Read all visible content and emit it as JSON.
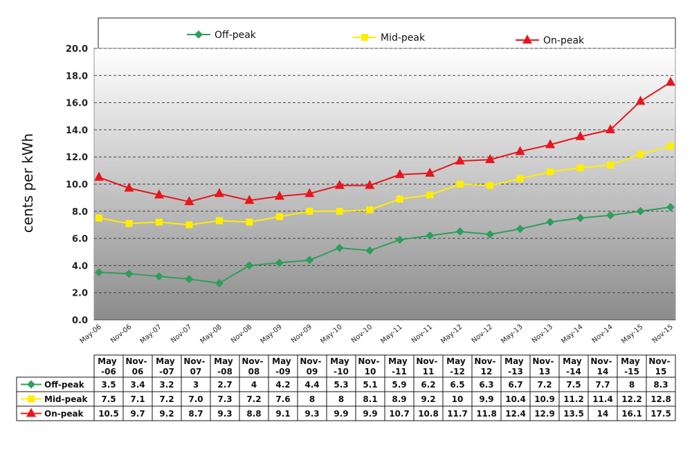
{
  "chart_data": {
    "type": "line",
    "title": "",
    "xlabel": "",
    "ylabel": "cents per kWh",
    "ylim": [
      0,
      20
    ],
    "yticks": [
      "0.0",
      "2.0",
      "4.0",
      "6.0",
      "8.0",
      "10.0",
      "12.0",
      "14.0",
      "16.0",
      "18.0",
      "20.0"
    ],
    "grid": true,
    "legend_position": "top",
    "categories": [
      "May-06",
      "Nov-06",
      "May-07",
      "Nov-07",
      "May-08",
      "Nov-08",
      "May-09",
      "Nov-09",
      "May-10",
      "Nov-10",
      "May-11",
      "Nov-11",
      "May-12",
      "Nov-12",
      "May-13",
      "Nov-13",
      "May-14",
      "Nov-14",
      "May-15",
      "Nov-15"
    ],
    "table_headers": [
      "May -06",
      "Nov- 06",
      "May -07",
      "Nov- 07",
      "May -08",
      "Nov- 08",
      "May -09",
      "Nov- 09",
      "May -10",
      "Nov- 10",
      "May -11",
      "Nov- 11",
      "May -12",
      "Nov- 12",
      "May -13",
      "Nov- 13",
      "May -14",
      "Nov- 14",
      "May -15",
      "Nov- 15"
    ],
    "series": [
      {
        "name": "Off-peak",
        "color": "#2e9e5b",
        "marker": "diamond",
        "values": [
          3.5,
          3.4,
          3.2,
          3,
          2.7,
          4,
          4.2,
          4.4,
          5.3,
          5.1,
          5.9,
          6.2,
          6.5,
          6.3,
          6.7,
          7.2,
          7.5,
          7.7,
          8,
          8.3
        ],
        "labels": [
          "3.5",
          "3.4",
          "3.2",
          "3",
          "2.7",
          "4",
          "4.2",
          "4.4",
          "5.3",
          "5.1",
          "5.9",
          "6.2",
          "6.5",
          "6.3",
          "6.7",
          "7.2",
          "7.5",
          "7.7",
          "8",
          "8.3"
        ]
      },
      {
        "name": "Mid-peak",
        "color": "#ffee00",
        "marker": "square",
        "values": [
          7.5,
          7.1,
          7.2,
          7.0,
          7.3,
          7.2,
          7.6,
          8,
          8,
          8.1,
          8.9,
          9.2,
          10,
          9.9,
          10.4,
          10.9,
          11.2,
          11.4,
          12.2,
          12.8
        ],
        "labels": [
          "7.5",
          "7.1",
          "7.2",
          "7.0",
          "7.3",
          "7.2",
          "7.6",
          "8",
          "8",
          "8.1",
          "8.9",
          "9.2",
          "10",
          "9.9",
          "10.4",
          "10.9",
          "11.2",
          "11.4",
          "12.2",
          "12.8"
        ]
      },
      {
        "name": "On-peak",
        "color": "#e8151b",
        "marker": "triangle",
        "values": [
          10.5,
          9.7,
          9.2,
          8.7,
          9.3,
          8.8,
          9.1,
          9.3,
          9.9,
          9.9,
          10.7,
          10.8,
          11.7,
          11.8,
          12.4,
          12.9,
          13.5,
          14,
          16.1,
          17.5
        ],
        "labels": [
          "10.5",
          "9.7",
          "9.2",
          "8.7",
          "9.3",
          "8.8",
          "9.1",
          "9.3",
          "9.9",
          "9.9",
          "10.7",
          "10.8",
          "11.7",
          "11.8",
          "12.4",
          "12.9",
          "13.5",
          "14",
          "16.1",
          "17.5"
        ]
      }
    ]
  }
}
